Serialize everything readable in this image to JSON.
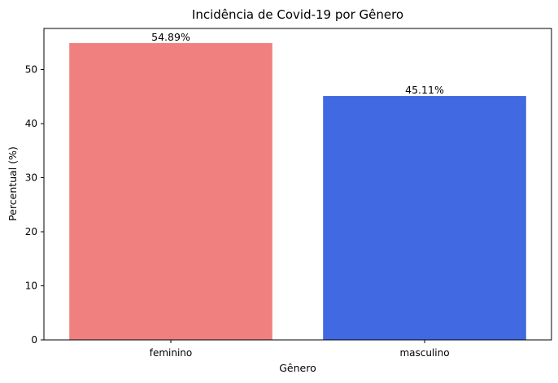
{
  "chart_data": {
    "type": "bar",
    "title": "Incidência de Covid-19 por Gênero",
    "xlabel": "Gênero",
    "ylabel": "Percentual (%)",
    "categories": [
      "feminino",
      "masculino"
    ],
    "values": [
      54.89,
      45.11
    ],
    "data_labels": [
      "54.89%",
      "45.11%"
    ],
    "colors": [
      "#f08080",
      "#4169e1"
    ],
    "ylim": [
      0,
      57.6
    ],
    "yticks": [
      0,
      10,
      20,
      30,
      40,
      50
    ],
    "ytick_labels": [
      "0",
      "10",
      "20",
      "30",
      "40",
      "50"
    ],
    "grid": false,
    "legend": "none"
  }
}
